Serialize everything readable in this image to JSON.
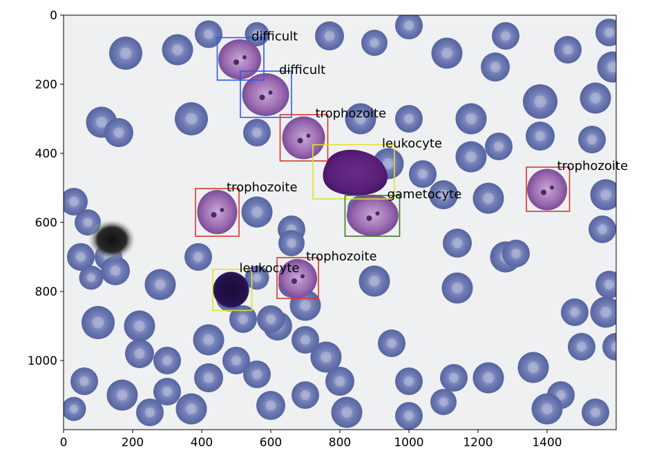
{
  "image": {
    "width": 1600,
    "height": 1200,
    "background": "#eef0f2",
    "cell_color": "#5b6aa8",
    "cell_dark": "#3c4c8e"
  },
  "axes": {
    "x_ticks": [
      0,
      200,
      400,
      600,
      800,
      1000,
      1200,
      1400
    ],
    "y_ticks": [
      0,
      200,
      400,
      600,
      800,
      1000
    ],
    "xlim": [
      0,
      1600
    ],
    "ylim": [
      1200,
      0
    ]
  },
  "annotations": [
    {
      "label": "difficult",
      "color": "#2b5ce6",
      "x0": 445,
      "y0": 65,
      "x1": 580,
      "y1": 188
    },
    {
      "label": "difficult",
      "color": "#2b5ce6",
      "x0": 512,
      "y0": 162,
      "x1": 660,
      "y1": 296
    },
    {
      "label": "trophozoite",
      "color": "#d9362b",
      "x0": 627,
      "y0": 288,
      "x1": 765,
      "y1": 422
    },
    {
      "label": "leukocyte",
      "color": "#e8e020",
      "x0": 722,
      "y0": 375,
      "x1": 958,
      "y1": 532
    },
    {
      "label": "trophozoite",
      "color": "#d9362b",
      "x0": 1340,
      "y0": 440,
      "x1": 1465,
      "y1": 568
    },
    {
      "label": "trophozoite",
      "color": "#d9362b",
      "x0": 382,
      "y0": 502,
      "x1": 508,
      "y1": 640
    },
    {
      "label": "gametocyte",
      "color": "#3b7a1e",
      "x0": 815,
      "y0": 522,
      "x1": 973,
      "y1": 640
    },
    {
      "label": "trophozoite",
      "color": "#d9362b",
      "x0": 618,
      "y0": 702,
      "x1": 738,
      "y1": 820
    },
    {
      "label": "leukocyte",
      "color": "#e8e020",
      "x0": 432,
      "y0": 736,
      "x1": 545,
      "y1": 855
    }
  ]
}
